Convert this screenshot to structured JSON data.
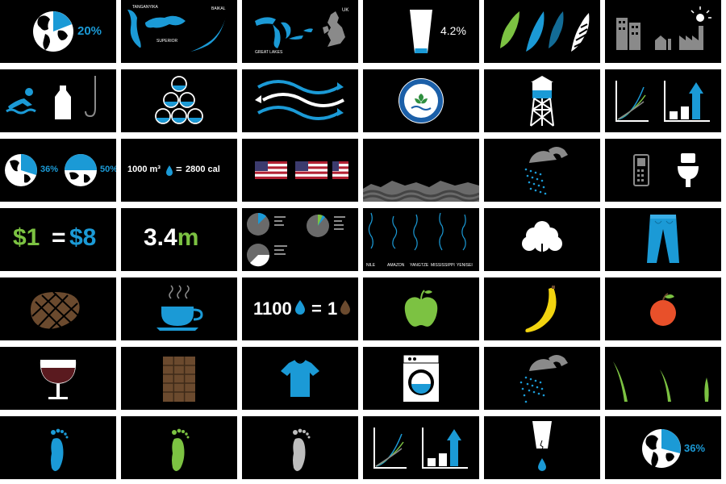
{
  "colors": {
    "blue": "#1b9ad6",
    "green": "#7cc242",
    "white": "#ffffff",
    "black": "#000000",
    "gray": "#8a8a8a",
    "brown": "#6b4a2e",
    "wine": "#5a1a1f",
    "yellow": "#f2d40f",
    "orange": "#e8502a"
  },
  "slides": {
    "r1": {
      "earth_pct": "20%",
      "lake_tanganyika": "TANGANYIKA",
      "lake_baikal": "BAIKAL",
      "lake_superior": "SUPERIOR",
      "uk": "UK",
      "great_lakes": "GREAT LAKES",
      "glass_pct": "4.2%"
    },
    "r3": {
      "earth_pct_a": "36%",
      "earth_pct_b": "50%",
      "eq_left": "1000 m³",
      "eq_equals": "=",
      "eq_right": "2800 cal"
    },
    "r4": {
      "money_left": "$1",
      "money_equals": "=",
      "money_right": "$8",
      "big_number": "3.4",
      "big_unit": "m",
      "rivers": [
        "NILE",
        "AMAZON",
        "YANGTZE",
        "MISSISSIPPI",
        "YENISEI"
      ]
    },
    "r5": {
      "drop_left": "1100",
      "drop_equals": "=",
      "drop_right": "1"
    },
    "r7": {
      "earth_pct": "36%"
    }
  }
}
